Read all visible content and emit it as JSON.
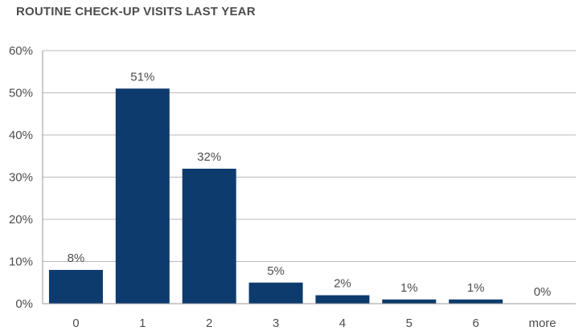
{
  "chart_data": {
    "type": "bar",
    "title": "ROUTINE CHECK-UP VISITS LAST YEAR",
    "categories": [
      "0",
      "1",
      "2",
      "3",
      "4",
      "5",
      "6",
      "more"
    ],
    "values": [
      8,
      51,
      32,
      5,
      2,
      1,
      1,
      0
    ],
    "data_labels": [
      "8%",
      "51%",
      "32%",
      "5%",
      "2%",
      "1%",
      "1%",
      "0%"
    ],
    "y_ticks": [
      0,
      10,
      20,
      30,
      40,
      50,
      60
    ],
    "y_tick_labels": [
      "0%",
      "10%",
      "20%",
      "30%",
      "40%",
      "50%",
      "60%"
    ],
    "ylim": [
      0,
      60
    ],
    "xlabel": "",
    "ylabel": "",
    "grid": true,
    "bar_color": "#0d3b6e",
    "grid_color": "#b8b8b8"
  }
}
